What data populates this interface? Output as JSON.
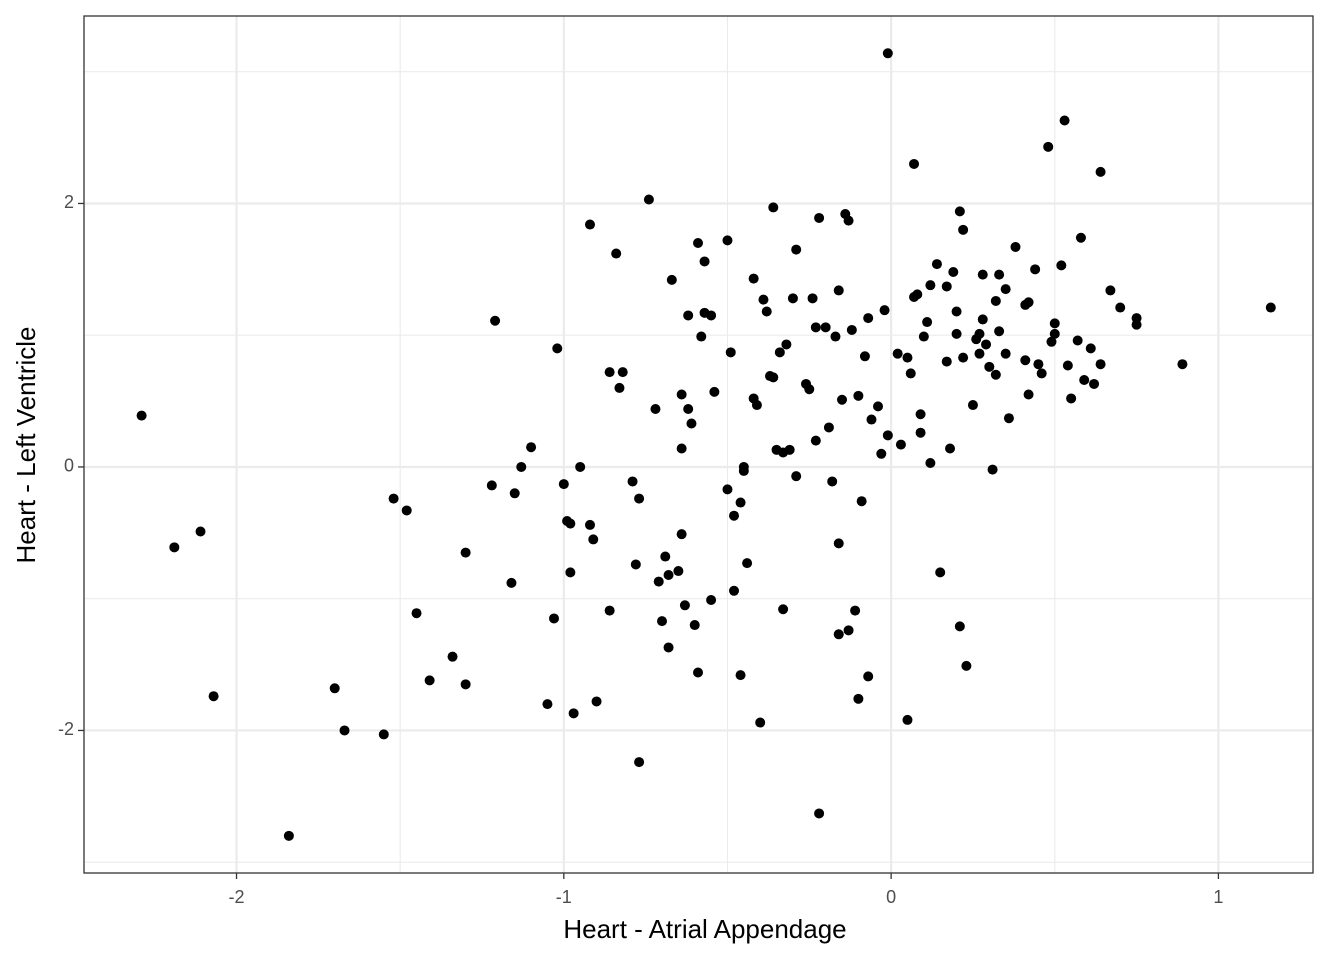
{
  "chart_data": {
    "type": "scatter",
    "xlabel": "Heart - Atrial Appendage",
    "ylabel": "Heart - Left Ventricle",
    "xlim": [
      -2.466,
      1.289
    ],
    "ylim": [
      -3.082,
      3.423
    ],
    "xticks": [
      -2,
      -1,
      0,
      1
    ],
    "yticks": [
      -2,
      0,
      2
    ],
    "minor_xgrid": [
      -1.5,
      -0.5,
      0.5
    ],
    "minor_ygrid": [
      -3,
      -1,
      1,
      3
    ],
    "grid": true,
    "color": "#000000",
    "x": [
      -2.29,
      -2.19,
      -2.11,
      -2.07,
      -1.84,
      -1.7,
      -1.67,
      -1.55,
      -1.52,
      -1.48,
      -1.45,
      -1.41,
      -1.34,
      -1.3,
      -1.3,
      -1.22,
      -1.21,
      -1.16,
      -1.15,
      -1.13,
      -1.1,
      -1.05,
      -1.03,
      -1.02,
      -1.0,
      -0.99,
      -0.98,
      -0.98,
      -0.97,
      -0.95,
      -0.92,
      -0.92,
      -0.91,
      -0.9,
      -0.86,
      -0.86,
      -0.84,
      -0.83,
      -0.82,
      -0.79,
      -0.78,
      -0.77,
      -0.77,
      -0.74,
      -0.72,
      -0.71,
      -0.7,
      -0.69,
      -0.68,
      -0.68,
      -0.67,
      -0.65,
      -0.64,
      -0.64,
      -0.64,
      -0.63,
      -0.62,
      -0.62,
      -0.61,
      -0.6,
      -0.59,
      -0.59,
      -0.58,
      -0.57,
      -0.57,
      -0.55,
      -0.55,
      -0.54,
      -0.5,
      -0.5,
      -0.49,
      -0.48,
      -0.48,
      -0.46,
      -0.46,
      -0.45,
      -0.45,
      -0.44,
      -0.42,
      -0.42,
      -0.41,
      -0.4,
      -0.39,
      -0.38,
      -0.37,
      -0.36,
      -0.36,
      -0.35,
      -0.34,
      -0.33,
      -0.33,
      -0.32,
      -0.31,
      -0.3,
      -0.29,
      -0.29,
      -0.26,
      -0.25,
      -0.24,
      -0.23,
      -0.23,
      -0.22,
      -0.22,
      -0.2,
      -0.19,
      -0.18,
      -0.17,
      -0.16,
      -0.16,
      -0.16,
      -0.15,
      -0.14,
      -0.13,
      -0.13,
      -0.12,
      -0.11,
      -0.1,
      -0.1,
      -0.09,
      -0.08,
      -0.07,
      -0.07,
      -0.06,
      -0.04,
      -0.03,
      -0.02,
      -0.01,
      -0.01,
      0.02,
      0.03,
      0.05,
      0.05,
      0.06,
      0.07,
      0.07,
      0.08,
      0.09,
      0.09,
      0.1,
      0.11,
      0.12,
      0.12,
      0.14,
      0.15,
      0.17,
      0.17,
      0.18,
      0.19,
      0.2,
      0.2,
      0.21,
      0.21,
      0.22,
      0.22,
      0.23,
      0.25,
      0.26,
      0.27,
      0.27,
      0.28,
      0.28,
      0.29,
      0.3,
      0.31,
      0.32,
      0.32,
      0.33,
      0.33,
      0.35,
      0.35,
      0.36,
      0.38,
      0.41,
      0.41,
      0.42,
      0.42,
      0.44,
      0.45,
      0.46,
      0.48,
      0.49,
      0.5,
      0.5,
      0.52,
      0.53,
      0.54,
      0.55,
      0.57,
      0.58,
      0.59,
      0.61,
      0.62,
      0.64,
      0.64,
      0.67,
      0.7,
      0.75,
      0.75,
      0.89,
      1.16
    ],
    "y": [
      0.39,
      -0.61,
      -0.49,
      -1.74,
      -2.8,
      -1.68,
      -2.0,
      -2.03,
      -0.24,
      -0.33,
      -1.11,
      -1.62,
      -1.44,
      -1.65,
      -0.65,
      -0.14,
      1.11,
      -0.88,
      -0.2,
      0.0,
      0.15,
      -1.8,
      -1.15,
      0.9,
      -0.13,
      -0.41,
      -0.43,
      -0.8,
      -1.87,
      0.0,
      -0.44,
      1.84,
      -0.55,
      -1.78,
      -1.09,
      0.72,
      1.62,
      0.6,
      0.72,
      -0.11,
      -0.74,
      -0.24,
      -2.24,
      2.03,
      0.44,
      -0.87,
      -1.17,
      -0.68,
      -1.37,
      -0.82,
      1.42,
      -0.79,
      0.55,
      -0.51,
      0.14,
      -1.05,
      0.44,
      1.15,
      0.33,
      -1.2,
      1.7,
      -1.56,
      0.99,
      1.17,
      1.56,
      1.15,
      -1.01,
      0.57,
      1.72,
      -0.17,
      0.87,
      -0.37,
      -0.94,
      -1.58,
      -0.27,
      -0.03,
      0.0,
      -0.73,
      0.52,
      1.43,
      0.47,
      -1.94,
      1.27,
      1.18,
      0.69,
      1.97,
      0.68,
      0.13,
      0.87,
      -1.08,
      0.11,
      0.93,
      0.13,
      1.28,
      1.65,
      -0.07,
      0.63,
      0.59,
      1.28,
      0.2,
      1.06,
      1.89,
      -2.63,
      1.06,
      0.3,
      -0.11,
      0.99,
      -1.27,
      -0.58,
      1.34,
      0.51,
      1.92,
      -1.24,
      1.87,
      1.04,
      -1.09,
      -1.76,
      0.54,
      -0.26,
      0.84,
      1.13,
      -1.59,
      0.36,
      0.46,
      0.1,
      1.19,
      0.24,
      3.14,
      0.86,
      0.17,
      -1.92,
      0.83,
      0.71,
      1.29,
      2.3,
      1.31,
      0.4,
      0.26,
      0.99,
      1.1,
      0.03,
      1.38,
      1.54,
      -0.8,
      0.8,
      1.37,
      0.14,
      1.48,
      1.01,
      1.18,
      1.94,
      -1.21,
      0.83,
      1.8,
      -1.51,
      0.47,
      0.97,
      1.01,
      0.86,
      1.46,
      1.12,
      0.93,
      0.76,
      -0.02,
      1.26,
      0.7,
      1.03,
      1.46,
      0.86,
      1.35,
      0.37,
      1.67,
      1.23,
      0.81,
      0.55,
      1.25,
      1.5,
      0.78,
      0.71,
      2.43,
      0.95,
      1.01,
      1.09,
      1.53,
      2.63,
      0.77,
      0.52,
      0.96,
      1.74,
      0.66,
      0.9,
      0.63,
      2.24,
      0.78,
      1.34,
      1.21,
      1.08,
      1.13,
      0.78,
      1.21
    ]
  }
}
